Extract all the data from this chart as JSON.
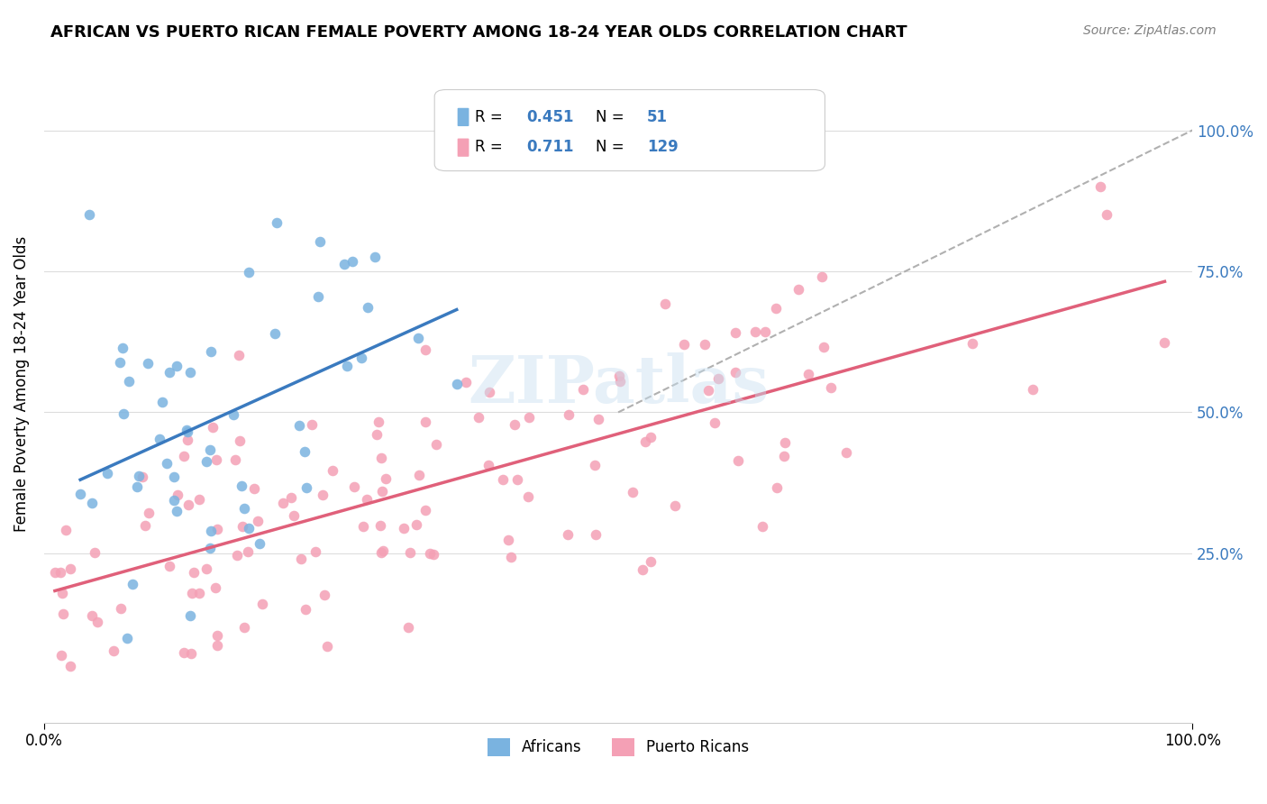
{
  "title": "AFRICAN VS PUERTO RICAN FEMALE POVERTY AMONG 18-24 YEAR OLDS CORRELATION CHART",
  "source": "Source: ZipAtlas.com",
  "xlabel": "",
  "ylabel": "Female Poverty Among 18-24 Year Olds",
  "xlim": [
    0,
    1
  ],
  "ylim": [
    -0.05,
    1.15
  ],
  "xtick_labels": [
    "0.0%",
    "100.0%"
  ],
  "ytick_labels": [
    "25.0%",
    "50.0%",
    "75.0%",
    "100.0%"
  ],
  "ytick_positions": [
    0.25,
    0.5,
    0.75,
    1.0
  ],
  "african_color": "#7ab3e0",
  "pr_color": "#f4a0b5",
  "african_line_color": "#3a7abf",
  "pr_line_color": "#e0607a",
  "diagonal_color": "#b0b0b0",
  "legend_african_label": "Africans",
  "legend_pr_label": "Puerto Ricans",
  "R_african": 0.451,
  "N_african": 51,
  "R_pr": 0.711,
  "N_pr": 129,
  "watermark": "ZIPatlas",
  "background_color": "#ffffff",
  "grid_color": "#dddddd",
  "african_seed": 42,
  "pr_seed": 7
}
